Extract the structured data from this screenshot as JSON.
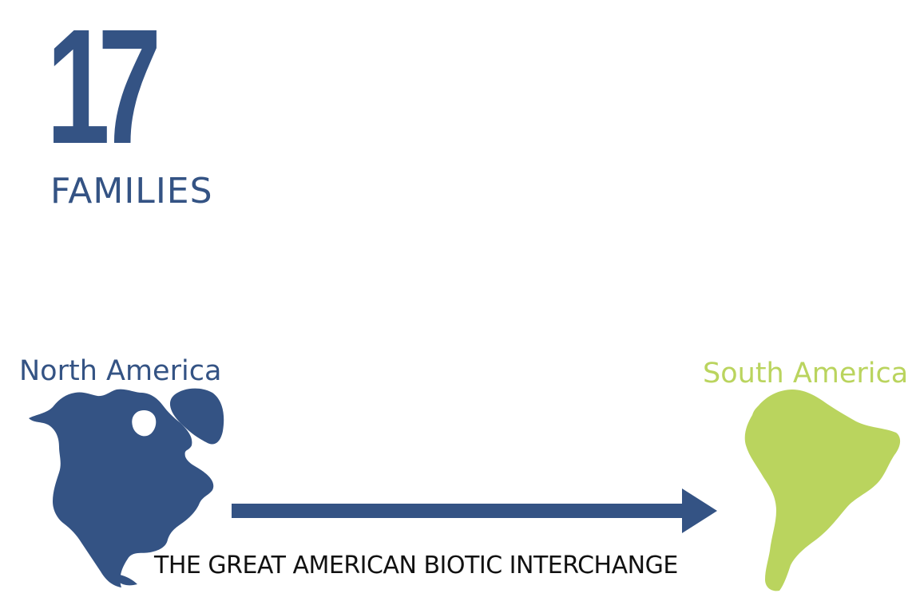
{
  "stat": {
    "number": "17",
    "unit": "FAMILIES"
  },
  "regions": {
    "origin": "North America",
    "destination": "South America"
  },
  "caption": "THE GREAT AMERICAN BIOTIC INTERCHANGE",
  "colors": {
    "primary_blue": "#345384",
    "south_green": "#bad45e",
    "caption_text": "#111111",
    "background": "#ffffff"
  },
  "icons": {
    "origin_map": "north-america-map-icon",
    "destination_map": "south-america-map-icon",
    "direction": "right-arrow-icon"
  }
}
